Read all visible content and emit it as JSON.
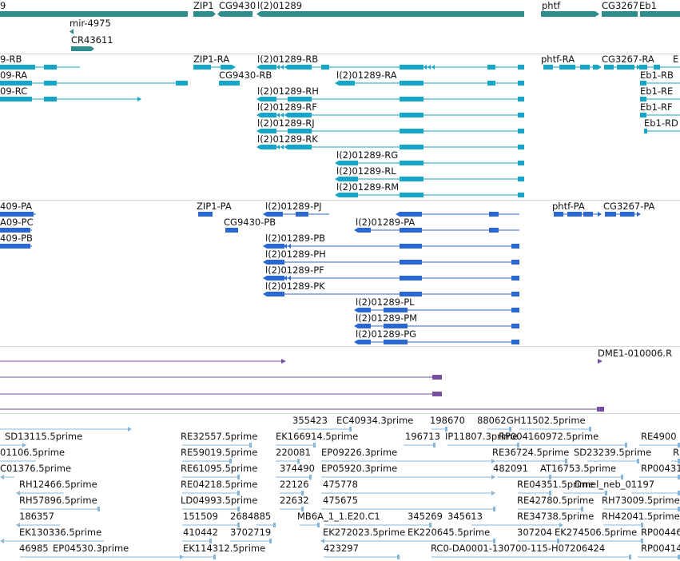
{
  "colors": {
    "gene": "#2f8e8c",
    "transcript": "#14a6c6",
    "protein": "#2a67d4",
    "clone": "#7550a0",
    "est": "#87b7d8",
    "separator": "#cfd6dc",
    "text": "#111111"
  },
  "tracks": {
    "genes": {
      "labels": [
        "9",
        "ZIP1",
        "CG9430",
        "l(2)01289",
        "phtf",
        "CG3267",
        "Eb1",
        "mir-4975",
        "CR43611"
      ]
    },
    "transcripts": {
      "labels": [
        "9-RB",
        "09-RA",
        "09-RC",
        "ZIP1-RA",
        "CG9430-RB",
        "l(2)01289-RB",
        "l(2)01289-RA",
        "l(2)01289-RH",
        "l(2)01289-RF",
        "l(2)01289-RJ",
        "l(2)01289-RK",
        "l(2)01289-RG",
        "l(2)01289-RL",
        "l(2)01289-RM",
        "phtf-RA",
        "CG3267-RA",
        "E",
        "Eb1-RB",
        "Eb1-RE",
        "Eb1-RF",
        "Eb1-RD"
      ]
    },
    "proteins": {
      "labels": [
        "409-PA",
        "A09-PC",
        "409-PB",
        "ZIP1-PA",
        "CG9430-PB",
        "l(2)01289-PJ",
        "l(2)01289-PA",
        "l(2)01289-PB",
        "l(2)01289-PH",
        "l(2)01289-PF",
        "l(2)01289-PK",
        "l(2)01289-PL",
        "l(2)01289-PM",
        "l(2)01289-PG",
        "phtf-PA",
        "CG3267-PA"
      ]
    },
    "clones": {
      "labels": [
        "DME1-010006.R"
      ]
    },
    "ests": {
      "labels": [
        "355423",
        "EC40934.3prime",
        "198670",
        "88062",
        "GH11502.5prime",
        "SD13115.5prime",
        "RE32557.5prime",
        "EK166914.5prime",
        "196713",
        "IP11807.3prime",
        "RP004160972.5prime",
        "RE4900",
        "01106.5prime",
        "RE59019.5prime",
        "220081",
        "EP09226.3prime",
        "RE36724.5prime",
        "SD23239.5prime",
        "R",
        "C01376.5prime",
        "RE61095.5prime",
        "374490",
        "EP05920.3prime",
        "482091",
        "AT16753.5prime",
        "RP00431",
        "RH12466.5prime",
        "RE04218.5prime",
        "22126",
        "475778",
        "RE04351.5prime",
        "Dmel_neb_01197",
        "RH57896.5prime",
        "LD04993.5prime",
        "22632",
        "475675",
        "RE42780.5prime",
        "RH73009.5prime",
        "186357",
        "151509",
        "2684885",
        "MB6A_1_1.E20.C1",
        "345269",
        "345613",
        "RE34738.5prime",
        "RH42041.5prime",
        "EK130336.5prime",
        "410442",
        "3702719",
        "EK272023.5prime",
        "EK220645.5prime",
        "307204",
        "EK274506.5prime",
        "RP00446",
        "46985",
        "EP04530.3prime",
        "EK114312.5prime",
        "423297",
        "RC0-DA0001-130700-115-H07206424",
        "RP00414"
      ]
    }
  }
}
